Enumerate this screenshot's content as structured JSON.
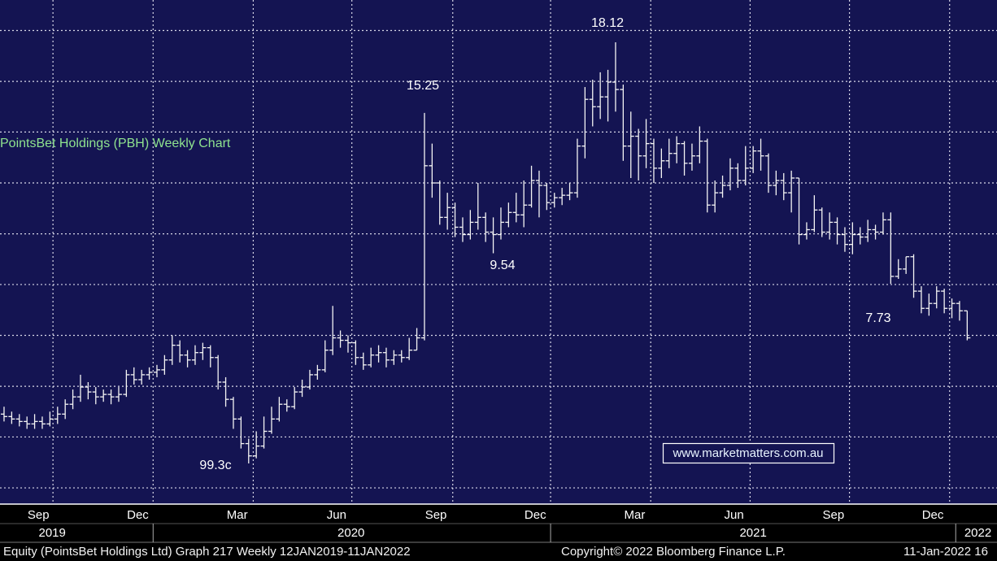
{
  "chart_data": {
    "type": "ohlc",
    "title": "PointsBet Holdings (PBH) Weekly Chart",
    "color": "#f4f4f4",
    "title_color": "#8fe38f",
    "grid": true,
    "xlim": [
      -0.53,
      129.9
    ],
    "ylim": [
      -0.66,
      19.84
    ],
    "yticks": [
      0,
      2.07,
      4.13,
      6.2,
      8.27,
      10.33,
      12.4,
      14.47,
      16.53,
      18.6
    ],
    "xgrid": [
      6.4,
      19.5,
      32.6,
      45.5,
      58.7,
      71.5,
      84.6,
      97.6,
      110.6,
      123.7
    ],
    "xticks": [
      {
        "value": 4.5,
        "label": "Sep"
      },
      {
        "value": 17.5,
        "label": "Dec"
      },
      {
        "value": 30.5,
        "label": "Mar"
      },
      {
        "value": 43.5,
        "label": "Jun"
      },
      {
        "value": 56.5,
        "label": "Sep"
      },
      {
        "value": 69.5,
        "label": "Dec"
      },
      {
        "value": 82.5,
        "label": "Mar"
      },
      {
        "value": 95.5,
        "label": "Jun"
      },
      {
        "value": 108.5,
        "label": "Sep"
      },
      {
        "value": 121.5,
        "label": "Dec"
      }
    ],
    "year_ticks": [
      {
        "value": 6.3,
        "label": "2019"
      },
      {
        "value": 45.4,
        "label": "2020"
      },
      {
        "value": 98,
        "label": "2021"
      },
      {
        "value": 127.4,
        "label": "2022"
      }
    ],
    "year_bounds": [
      19.5,
      71.5,
      124.5
    ],
    "annotations": [
      "15.25",
      "18.12",
      "9.54",
      "99.3c",
      "7.73"
    ],
    "ohlc": {
      "open": [
        3.0,
        2.9,
        2.8,
        2.7,
        2.6,
        2.7,
        2.6,
        2.8,
        3.0,
        3.4,
        3.7,
        4.1,
        3.9,
        3.7,
        3.8,
        3.7,
        3.8,
        4.6,
        4.4,
        4.6,
        4.7,
        4.8,
        5.2,
        5.8,
        5.4,
        5.2,
        5.5,
        5.7,
        5.3,
        4.3,
        3.6,
        2.8,
        1.8,
        1.3,
        1.7,
        2.3,
        2.8,
        3.4,
        3.3,
        3.9,
        4.1,
        4.6,
        4.8,
        5.6,
        6.1,
        6.0,
        5.9,
        5.3,
        5.0,
        5.4,
        5.5,
        5.2,
        5.4,
        5.3,
        5.6,
        6.1,
        13.1,
        12.4,
        11.0,
        11.4,
        10.6,
        10.3,
        10.8,
        11.0,
        10.4,
        10.3,
        10.8,
        11.2,
        11.1,
        11.5,
        12.5,
        12.3,
        11.6,
        11.8,
        11.9,
        12.0,
        13.9,
        15.8,
        15.5,
        15.9,
        16.5,
        16.2,
        13.9,
        14.3,
        13.5,
        14.0,
        13.0,
        13.3,
        13.6,
        14.0,
        13.2,
        13.5,
        14.1,
        11.5,
        12.0,
        12.3,
        13.0,
        12.5,
        13.0,
        13.7,
        13.5,
        12.3,
        12.5,
        12.0,
        12.6,
        10.3,
        10.5,
        11.3,
        10.4,
        10.8,
        10.3,
        9.9,
        10.3,
        10.2,
        10.5,
        10.4,
        10.9,
        8.6,
        8.9,
        9.4,
        8.0,
        7.3,
        7.5,
        8.0,
        7.3,
        7.5,
        7.2
      ],
      "high": [
        3.3,
        3.1,
        3.0,
        2.9,
        3.0,
        2.9,
        3.1,
        3.3,
        3.6,
        4.0,
        4.6,
        4.3,
        4.1,
        4.0,
        4.0,
        4.1,
        4.8,
        4.9,
        4.8,
        4.9,
        5.0,
        5.4,
        6.2,
        6.0,
        5.6,
        5.8,
        5.9,
        5.8,
        5.4,
        4.5,
        3.7,
        2.9,
        2.0,
        2.3,
        2.9,
        3.3,
        3.7,
        3.6,
        4.1,
        4.4,
        4.8,
        5.0,
        6.0,
        7.4,
        6.4,
        6.2,
        6.0,
        5.5,
        5.7,
        5.8,
        5.7,
        5.6,
        5.6,
        6.1,
        6.5,
        15.25,
        14.0,
        12.5,
        12.0,
        11.6,
        11.0,
        11.3,
        12.4,
        11.2,
        11.0,
        11.4,
        11.6,
        12.0,
        12.5,
        13.1,
        12.9,
        12.4,
        12.0,
        12.2,
        12.4,
        14.2,
        16.3,
        16.6,
        16.9,
        17.0,
        18.12,
        16.4,
        15.3,
        14.6,
        15.0,
        14.2,
        13.8,
        14.2,
        14.3,
        14.1,
        14.0,
        14.7,
        14.2,
        12.5,
        12.7,
        13.4,
        13.2,
        13.9,
        13.9,
        14.2,
        13.6,
        12.9,
        12.8,
        12.9,
        12.6,
        10.8,
        11.9,
        11.4,
        11.2,
        11.0,
        10.6,
        10.8,
        10.6,
        10.9,
        10.7,
        11.2,
        11.2,
        9.3,
        9.4,
        9.5,
        8.2,
        7.9,
        8.2,
        8.1,
        7.7,
        7.6,
        7.2
      ],
      "low": [
        2.7,
        2.6,
        2.5,
        2.4,
        2.4,
        2.4,
        2.5,
        2.6,
        2.8,
        3.2,
        3.5,
        3.6,
        3.4,
        3.5,
        3.4,
        3.5,
        3.7,
        4.2,
        4.2,
        4.4,
        4.5,
        4.6,
        5.0,
        5.1,
        4.9,
        5.0,
        5.2,
        4.9,
        4.0,
        3.3,
        2.4,
        1.6,
        0.993,
        1.2,
        1.6,
        2.2,
        2.7,
        3.1,
        3.2,
        3.7,
        4.0,
        4.4,
        4.7,
        5.4,
        5.7,
        5.5,
        5.0,
        4.8,
        4.9,
        5.1,
        4.9,
        5.0,
        5.1,
        5.2,
        5.6,
        6.0,
        11.8,
        10.7,
        10.5,
        10.2,
        10.0,
        10.1,
        10.5,
        10.0,
        9.54,
        10.1,
        10.6,
        10.8,
        10.6,
        11.4,
        11.0,
        11.3,
        11.4,
        11.5,
        11.7,
        11.8,
        13.4,
        14.7,
        15.0,
        14.9,
        15.3,
        13.3,
        12.6,
        12.5,
        13.0,
        12.4,
        12.6,
        13.0,
        13.2,
        12.7,
        12.9,
        13.2,
        11.2,
        11.2,
        11.8,
        12.1,
        12.2,
        12.3,
        12.8,
        12.9,
        12.0,
        11.9,
        11.7,
        11.2,
        9.9,
        10.1,
        10.4,
        10.2,
        10.1,
        9.9,
        9.6,
        9.5,
        9.9,
        10.0,
        10.1,
        10.3,
        8.3,
        8.5,
        8.7,
        7.73,
        7.1,
        7.0,
        7.3,
        7.1,
        6.9,
        6.8,
        6.0
      ],
      "close": [
        2.9,
        2.8,
        2.7,
        2.6,
        2.7,
        2.6,
        2.8,
        3.0,
        3.4,
        3.7,
        4.1,
        3.9,
        3.7,
        3.8,
        3.7,
        3.8,
        4.6,
        4.4,
        4.6,
        4.7,
        4.8,
        5.2,
        5.8,
        5.4,
        5.2,
        5.5,
        5.7,
        5.3,
        4.3,
        3.6,
        2.8,
        1.8,
        1.3,
        1.7,
        2.3,
        2.8,
        3.4,
        3.3,
        3.9,
        4.1,
        4.6,
        4.8,
        5.6,
        6.1,
        6.0,
        5.9,
        5.3,
        5.0,
        5.4,
        5.5,
        5.2,
        5.4,
        5.3,
        5.6,
        6.1,
        13.1,
        12.4,
        11.0,
        11.4,
        10.6,
        10.3,
        10.8,
        11.0,
        10.4,
        10.3,
        10.8,
        11.2,
        11.1,
        11.5,
        12.5,
        12.3,
        11.6,
        11.8,
        11.9,
        12.0,
        13.9,
        15.8,
        15.5,
        15.9,
        16.5,
        16.2,
        13.9,
        14.3,
        13.5,
        14.0,
        13.0,
        13.3,
        13.6,
        14.0,
        13.2,
        13.5,
        14.1,
        11.5,
        12.0,
        12.3,
        13.0,
        12.5,
        13.0,
        13.7,
        13.5,
        12.3,
        12.5,
        12.0,
        12.6,
        10.3,
        10.5,
        11.3,
        10.4,
        10.8,
        10.3,
        9.9,
        10.3,
        10.2,
        10.5,
        10.4,
        10.9,
        8.6,
        8.9,
        9.4,
        8.0,
        7.3,
        7.5,
        8.0,
        7.3,
        7.5,
        7.2,
        6.1
      ]
    }
  },
  "watermark": "www.marketmatters.com.au",
  "footer": {
    "left": "Equity (PointsBet Holdings Ltd) Graph 217  Weekly 12JAN2019-11JAN2022",
    "center": "Copyright© 2022 Bloomberg Finance L.P.",
    "right": "11-Jan-2022 16"
  }
}
